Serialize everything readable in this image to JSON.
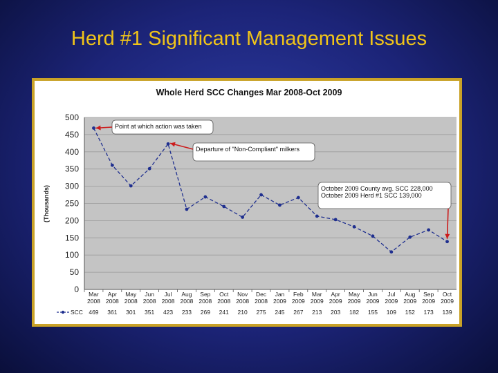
{
  "slide": {
    "title": "Herd #1 Significant Management Issues"
  },
  "chart_data": {
    "type": "line",
    "title": "Whole Herd SCC Changes Mar 2008-Oct 2009",
    "ylabel": "(Thousands)",
    "ylim": [
      0,
      500
    ],
    "yticks": [
      "0",
      "50",
      "100",
      "150",
      "200",
      "250",
      "300",
      "350",
      "400",
      "450",
      "500"
    ],
    "grid": true,
    "categories": [
      [
        "Mar",
        "2008"
      ],
      [
        "Apr",
        "2008"
      ],
      [
        "May",
        "2008"
      ],
      [
        "Jun",
        "2008"
      ],
      [
        "Jul",
        "2008"
      ],
      [
        "Aug",
        "2008"
      ],
      [
        "Sep",
        "2008"
      ],
      [
        "Oct",
        "2008"
      ],
      [
        "Nov",
        "2008"
      ],
      [
        "Dec",
        "2008"
      ],
      [
        "Jan",
        "2009"
      ],
      [
        "Feb",
        "2009"
      ],
      [
        "Mar",
        "2009"
      ],
      [
        "Apr",
        "2009"
      ],
      [
        "May",
        "2009"
      ],
      [
        "Jun",
        "2009"
      ],
      [
        "Jul",
        "2009"
      ],
      [
        "Aug",
        "2009"
      ],
      [
        "Sep",
        "2009"
      ],
      [
        "Oct",
        "2009"
      ]
    ],
    "series": [
      {
        "name": "SCC",
        "color": "#1f2f8f",
        "style": "dashed",
        "values": [
          469,
          361,
          301,
          351,
          423,
          233,
          269,
          241,
          210,
          275,
          245,
          267,
          213,
          203,
          182,
          155,
          109,
          152,
          173,
          139
        ],
        "labels": [
          "469",
          "361",
          "301",
          "351",
          "423",
          "233",
          "269",
          "241",
          "210",
          "275",
          "245",
          "267",
          "213",
          "203",
          "182",
          "155",
          "109",
          "152",
          "173",
          "139"
        ]
      }
    ],
    "annotations": [
      {
        "text": "Point at which action was taken",
        "target_index": 0
      },
      {
        "text": "Departure of \"Non-Compliant\" milkers",
        "target_index": 4
      },
      {
        "lines": [
          "October 2009 County avg. SCC 228,000",
          "October 2009 Herd #1     SCC 139,000"
        ],
        "target_index": 19
      }
    ]
  }
}
